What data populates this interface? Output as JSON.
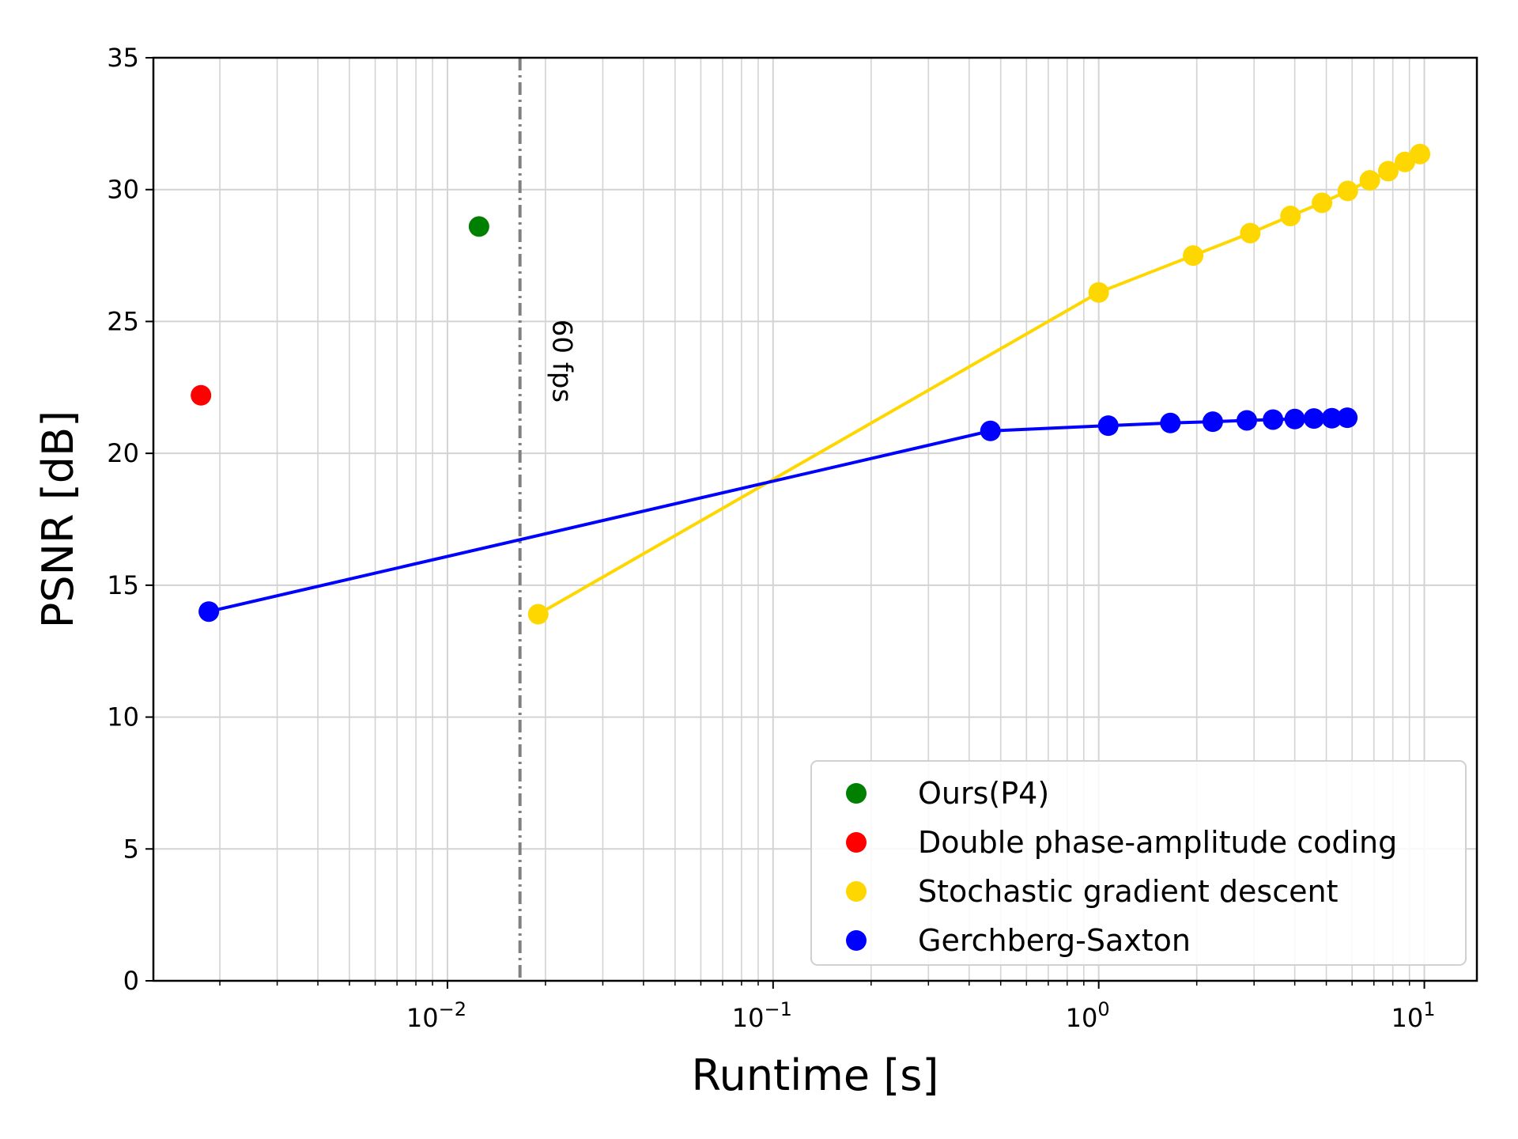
{
  "chart_data": {
    "type": "scatter",
    "xlabel": "Runtime [s]",
    "ylabel": "PSNR [dB]",
    "xscale": "log",
    "xlim": [
      0.00125,
      14.5
    ],
    "ylim": [
      0,
      35
    ],
    "x_tick_labels": [
      "10",
      "10",
      "10",
      "10"
    ],
    "x_tick_exponents": [
      "−2",
      "−1",
      "0",
      "1"
    ],
    "x_tick_values": [
      0.01,
      0.1,
      1,
      10
    ],
    "y_ticks": [
      0,
      5,
      10,
      15,
      20,
      25,
      30,
      35
    ],
    "y_tick_labels": [
      "0",
      "5",
      "10",
      "15",
      "20",
      "25",
      "30",
      "35"
    ],
    "grid": true,
    "legend_position": "lower-right",
    "annotations": [
      {
        "type": "vline",
        "x": 0.0167,
        "style": "dash-dot",
        "color": "#808080",
        "label": "60 fps"
      }
    ],
    "series": [
      {
        "name": "Ours(P4)",
        "color": "#008000",
        "line": false,
        "x": [
          0.0125
        ],
        "y": [
          28.6
        ]
      },
      {
        "name": "Double phase-amplitude coding",
        "color": "#ff0000",
        "line": false,
        "x": [
          0.00175
        ],
        "y": [
          22.2
        ]
      },
      {
        "name": "Stochastic gradient descent",
        "color": "#ffd700",
        "line": true,
        "x": [
          0.019,
          1.0,
          1.95,
          2.92,
          3.88,
          4.85,
          5.82,
          6.8,
          7.75,
          8.72,
          9.7
        ],
        "y": [
          13.9,
          26.1,
          27.5,
          28.35,
          29.0,
          29.5,
          29.95,
          30.35,
          30.7,
          31.05,
          31.35
        ]
      },
      {
        "name": "Gerchberg-Saxton",
        "color": "#0000ff",
        "line": true,
        "x": [
          0.00185,
          0.465,
          1.07,
          1.66,
          2.24,
          2.85,
          3.43,
          4.0,
          4.58,
          5.2,
          5.8
        ],
        "y": [
          14.0,
          20.85,
          21.05,
          21.15,
          21.2,
          21.25,
          21.28,
          21.3,
          21.32,
          21.33,
          21.35
        ]
      }
    ]
  }
}
